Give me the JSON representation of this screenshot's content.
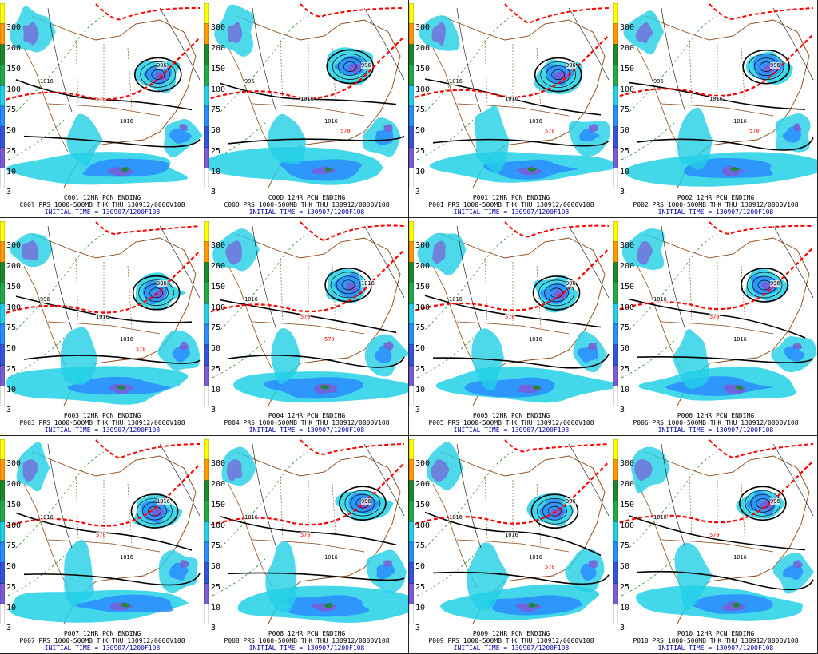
{
  "common": {
    "scale_labels": [
      "300",
      "200",
      "150",
      "100",
      "75",
      "50",
      "25",
      "10",
      "3"
    ],
    "colors": {
      "precip_light": "#22d0e6",
      "precip_mid": "#2a8cff",
      "precip_heavy": "#7a5cd6",
      "precip_extreme": "#1a8a2a",
      "thickness_570": "#ff0000",
      "pressure": "#000000",
      "borders": "#8b4513",
      "caption_time": "#0000a0"
    }
  },
  "panels": [
    {
      "id": "c00l",
      "title": "C00l 12HR PCN ENDING",
      "line2": "C00l PRS 1000-500MB THK THU 130912/0000V108",
      "line3": "INITIAL TIME = 130907/1200F108",
      "labels": [
        "996",
        "1016",
        "1016",
        "570"
      ]
    },
    {
      "id": "c00d",
      "title": "C00D 12HR PCN ENDING",
      "line2": "C00D PRS 1000-500MB THK THU 130912/0000V108",
      "line3": "INITIAL TIME = 130907/1200F108",
      "labels": [
        "996",
        "996",
        "1016",
        "1016",
        "570"
      ]
    },
    {
      "id": "p001",
      "title": "P001 12HR PCN ENDING",
      "line2": "P001 PRS 1000-500MB THK THU 130912/0000V108",
      "line3": "INITIAL TIME = 130907/1200F108",
      "labels": [
        "996",
        "1016",
        "1016",
        "1016",
        "570"
      ]
    },
    {
      "id": "p002",
      "title": "P002 12HR PCN ENDING",
      "line2": "P002 PRS 1000-500MB THK THU 130912/0000V108",
      "line3": "INITIAL TIME = 130907/1200F108",
      "labels": [
        "996",
        "996",
        "1016",
        "1016",
        "570"
      ]
    },
    {
      "id": "p003",
      "title": "P003 12HR PCN ENDING",
      "line2": "P003 PRS 1000-500MB THK THU 130912/0000V108",
      "line3": "INITIAL TIME = 130907/1200F108",
      "labels": [
        "996",
        "996",
        "1016",
        "1016",
        "570"
      ]
    },
    {
      "id": "p004",
      "title": "P004 12HR PCN ENDING",
      "line2": "P004 PRS 1000-500MB THK THU 130912/0000V108",
      "line3": "INITIAL TIME = 130907/1200F108",
      "labels": [
        "1016",
        "1016",
        "570",
        "570"
      ]
    },
    {
      "id": "p005",
      "title": "P005 12HR PCN ENDING",
      "line2": "P005 PRS 1000-500MB THK THU 130912/0000V108",
      "line3": "INITIAL TIME = 130907/1200F108",
      "labels": [
        "996",
        "1016",
        "1016",
        "570"
      ]
    },
    {
      "id": "p006",
      "title": "P006 12HR PCN ENDING",
      "line2": "P006 PRS 1000-500MB THK THU 130912/0000V108",
      "line3": "INITIAL TIME = 130907/1200F108",
      "labels": [
        "996",
        "1016",
        "1016",
        "570"
      ]
    },
    {
      "id": "p007",
      "title": "P007 12HR PCN ENDING",
      "line2": "P007 PRS 1000-500MB THK THU 130912/0000V108",
      "line3": "INITIAL TIME = 130907/1200F108",
      "labels": [
        "1016",
        "1016",
        "1016",
        "570"
      ]
    },
    {
      "id": "p008",
      "title": "P008 12HR PCN ENDING",
      "line2": "P008 PRS 1000-500MB THK THU 130912/0000V108",
      "line3": "INITIAL TIME = 130907/1200F108",
      "labels": [
        "996",
        "1016",
        "1016",
        "570"
      ]
    },
    {
      "id": "p009",
      "title": "P009 12HR PCN ENDING",
      "line2": "P009 PRS 1000-500MB THK THU 130912/0000V108",
      "line3": "INITIAL TIME = 130907/1200F108",
      "labels": [
        "996",
        "1016",
        "1016",
        "1016",
        "570"
      ]
    },
    {
      "id": "p010",
      "title": "P010 12HR PCN ENDING",
      "line2": "P010 PRS 1000-500MB THK THU 130912/0000V108",
      "line3": "INITIAL TIME = 130907/1200F108",
      "labels": [
        "996",
        "1016",
        "1016",
        "570"
      ]
    }
  ]
}
